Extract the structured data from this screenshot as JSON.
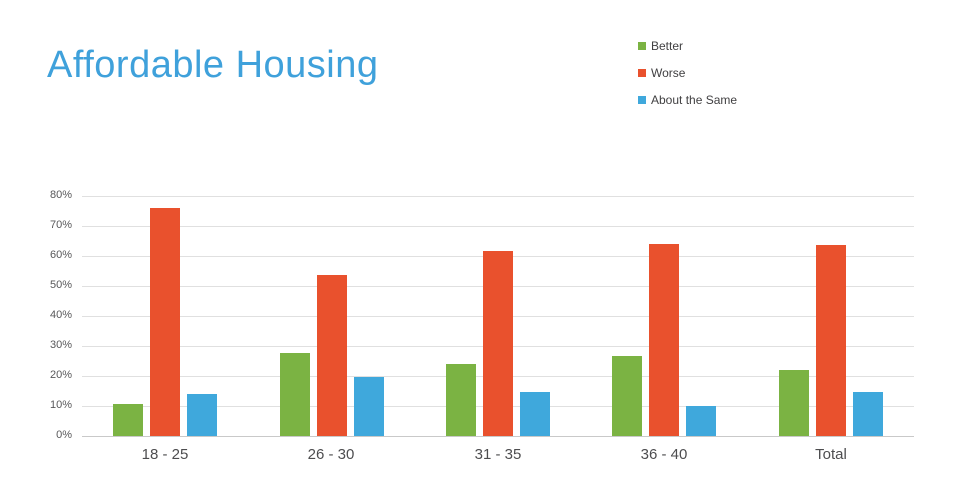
{
  "title": "Affordable Housing",
  "colors": {
    "title": "#3fa1db",
    "grid": "#e0e0e0",
    "axis_line": "#c9c9c9",
    "y_tick_text": "#58585a",
    "x_tick_text": "#4d4d4f",
    "legend_text": "#414042",
    "background": "#ffffff",
    "better": "#7bb343",
    "worse": "#e9512d",
    "about_the_same": "#3fa8dc"
  },
  "legend": {
    "position": "top-right-vertical",
    "items": [
      {
        "label": "Better",
        "color": "#7bb343"
      },
      {
        "label": "Worse",
        "color": "#e9512d"
      },
      {
        "label": "About the Same",
        "color": "#3fa8dc"
      }
    ]
  },
  "chart_data": {
    "type": "bar",
    "title": "Affordable Housing",
    "categories": [
      "18 - 25",
      "26 - 30",
      "31 - 35",
      "36 - 40",
      "Total"
    ],
    "series": [
      {
        "name": "Better",
        "color": "#7bb343",
        "values": [
          10.5,
          27.5,
          24,
          26.5,
          22
        ]
      },
      {
        "name": "Worse",
        "color": "#e9512d",
        "values": [
          76,
          53.5,
          61.5,
          64,
          63.5
        ]
      },
      {
        "name": "About the Same",
        "color": "#3fa8dc",
        "values": [
          14,
          19.5,
          14.5,
          10,
          14.5
        ]
      }
    ],
    "ylabel": "",
    "xlabel": "",
    "ylim": [
      0,
      80
    ],
    "y_axis": {
      "min": 0,
      "max": 80,
      "step": 10,
      "suffix": "%",
      "tick_labels": [
        "0%",
        "10%",
        "20%",
        "30%",
        "40%",
        "50%",
        "60%",
        "70%",
        "80%"
      ]
    },
    "x_axis": {
      "tick_labels": [
        "18 - 25",
        "26 - 30",
        "31 - 35",
        "36 - 40",
        "Total"
      ]
    },
    "grid": "horizontal",
    "legend_position": "top-right"
  }
}
